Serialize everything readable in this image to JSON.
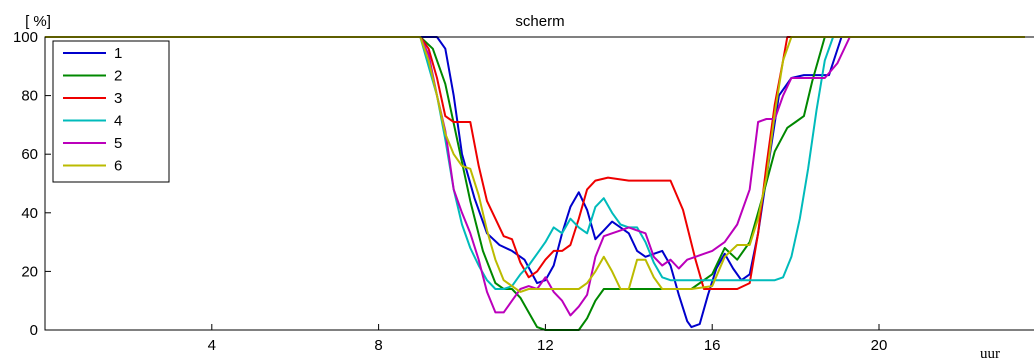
{
  "chart_data": {
    "type": "line",
    "title": "scherm",
    "ylabel": "[ %]",
    "xlabel": "uur",
    "xlim": [
      0,
      23.5
    ],
    "ylim": [
      0,
      100
    ],
    "xticks": [
      4,
      8,
      12,
      16,
      20
    ],
    "yticks": [
      0,
      20,
      40,
      60,
      80,
      100
    ],
    "grid": false,
    "legend_position": "top-left",
    "series": [
      {
        "name": "1",
        "color": "#0000cc",
        "x": [
          0,
          9.0,
          9.4,
          9.6,
          9.8,
          10.0,
          10.3,
          10.6,
          10.9,
          11.2,
          11.5,
          11.8,
          12.0,
          12.2,
          12.4,
          12.6,
          12.8,
          13.0,
          13.2,
          13.4,
          13.6,
          13.8,
          14.0,
          14.2,
          14.4,
          14.6,
          14.8,
          15.0,
          15.2,
          15.4,
          15.5,
          15.7,
          15.9,
          16.1,
          16.3,
          16.5,
          16.7,
          16.9,
          17.1,
          17.3,
          17.6,
          17.9,
          18.2,
          18.5,
          18.8,
          19.1,
          23.5
        ],
        "y": [
          100,
          100,
          100,
          96,
          80,
          60,
          45,
          33,
          29,
          27,
          24,
          16,
          17,
          22,
          33,
          42,
          47,
          41,
          31,
          34,
          37,
          35,
          33,
          27,
          25,
          26,
          27,
          22,
          12,
          3,
          1,
          2,
          12,
          21,
          26,
          21,
          17,
          19,
          33,
          52,
          80,
          86,
          87,
          87,
          87,
          100,
          100
        ]
      },
      {
        "name": "2",
        "color": "#008800",
        "x": [
          0,
          9.0,
          9.3,
          9.6,
          9.9,
          10.2,
          10.5,
          10.8,
          11.0,
          11.2,
          11.4,
          11.6,
          11.8,
          12.0,
          12.4,
          12.8,
          13.0,
          13.2,
          13.4,
          13.6,
          14.0,
          14.5,
          15.0,
          15.5,
          16.0,
          16.3,
          16.6,
          16.9,
          17.2,
          17.5,
          17.8,
          18.0,
          18.2,
          18.4,
          18.7,
          23.5
        ],
        "y": [
          100,
          100,
          96,
          84,
          64,
          44,
          27,
          16,
          14,
          14,
          11,
          6,
          1,
          0,
          0,
          0,
          4,
          10,
          14,
          14,
          14,
          14,
          14,
          14,
          19,
          28,
          24,
          30,
          45,
          61,
          69,
          71,
          73,
          85,
          100,
          100
        ]
      },
      {
        "name": "3",
        "color": "#ee0000",
        "x": [
          0,
          9.0,
          9.2,
          9.4,
          9.6,
          9.8,
          10.0,
          10.2,
          10.4,
          10.6,
          10.8,
          11.0,
          11.2,
          11.4,
          11.6,
          11.8,
          12.0,
          12.2,
          12.4,
          12.6,
          12.8,
          13.0,
          13.2,
          13.5,
          14.0,
          14.5,
          15.0,
          15.3,
          15.6,
          15.8,
          16.0,
          16.3,
          16.6,
          16.9,
          17.1,
          17.3,
          17.5,
          17.7,
          17.8,
          23.5
        ],
        "y": [
          100,
          100,
          96,
          86,
          73,
          71,
          71,
          71,
          56,
          44,
          38,
          32,
          31,
          23,
          18,
          20,
          24,
          27,
          27,
          29,
          38,
          48,
          51,
          52,
          51,
          51,
          51,
          41,
          24,
          14,
          14,
          14,
          14,
          16,
          33,
          56,
          77,
          92,
          100,
          100
        ]
      },
      {
        "name": "4",
        "color": "#00bbbb",
        "x": [
          0,
          9.0,
          9.2,
          9.4,
          9.6,
          9.8,
          10.0,
          10.2,
          10.4,
          10.6,
          10.8,
          11.0,
          11.2,
          11.4,
          11.6,
          11.8,
          12.0,
          12.2,
          12.4,
          12.6,
          12.8,
          13.0,
          13.2,
          13.4,
          13.6,
          13.8,
          14.0,
          14.2,
          14.4,
          14.6,
          14.8,
          15.0,
          15.5,
          16.0,
          16.5,
          17.0,
          17.5,
          17.7,
          17.9,
          18.1,
          18.3,
          18.5,
          18.7,
          18.9,
          23.5
        ],
        "y": [
          100,
          100,
          90,
          80,
          65,
          48,
          36,
          28,
          22,
          17,
          14,
          14,
          15,
          19,
          22,
          26,
          30,
          35,
          33,
          38,
          35,
          33,
          42,
          45,
          40,
          36,
          35,
          35,
          30,
          23,
          18,
          17,
          17,
          17,
          17,
          17,
          17,
          18,
          25,
          38,
          55,
          75,
          92,
          100,
          100
        ]
      },
      {
        "name": "5",
        "color": "#bb00bb",
        "x": [
          0,
          9.0,
          9.2,
          9.4,
          9.6,
          9.8,
          10.0,
          10.2,
          10.4,
          10.6,
          10.8,
          11.0,
          11.2,
          11.4,
          11.6,
          11.8,
          12.0,
          12.2,
          12.4,
          12.6,
          12.8,
          13.0,
          13.2,
          13.4,
          13.6,
          13.8,
          14.0,
          14.2,
          14.4,
          14.6,
          14.8,
          15.0,
          15.2,
          15.4,
          15.6,
          15.8,
          16.0,
          16.3,
          16.6,
          16.9,
          17.1,
          17.3,
          17.5,
          17.7,
          17.9,
          18.1,
          18.3,
          18.5,
          18.7,
          19.0,
          19.3,
          23.5
        ],
        "y": [
          100,
          100,
          94,
          80,
          68,
          48,
          40,
          33,
          24,
          13,
          6,
          6,
          10,
          14,
          15,
          14,
          18,
          13,
          10,
          5,
          8,
          12,
          25,
          32,
          33,
          34,
          35,
          34,
          33,
          25,
          22,
          24,
          21,
          24,
          25,
          26,
          27,
          30,
          36,
          48,
          71,
          72,
          72,
          80,
          86,
          86,
          86,
          86,
          86,
          91,
          100,
          100
        ]
      },
      {
        "name": "6",
        "color": "#bbbb00",
        "x": [
          0,
          9.0,
          9.2,
          9.4,
          9.6,
          9.8,
          10.0,
          10.2,
          10.4,
          10.6,
          10.8,
          11.0,
          11.2,
          11.4,
          11.6,
          11.8,
          12.0,
          12.4,
          12.8,
          13.0,
          13.2,
          13.4,
          13.6,
          13.8,
          14.0,
          14.2,
          14.4,
          14.6,
          14.8,
          15.0,
          15.5,
          16.0,
          16.3,
          16.6,
          16.9,
          17.1,
          17.3,
          17.5,
          17.7,
          17.9,
          18.1,
          23.5
        ],
        "y": [
          100,
          100,
          92,
          80,
          67,
          60,
          56,
          55,
          46,
          34,
          24,
          17,
          15,
          13,
          14,
          14,
          14,
          14,
          14,
          16,
          20,
          25,
          20,
          14,
          14,
          24,
          24,
          18,
          14,
          14,
          14,
          15,
          25,
          29,
          29,
          38,
          52,
          74,
          92,
          100,
          100,
          100
        ]
      }
    ]
  }
}
